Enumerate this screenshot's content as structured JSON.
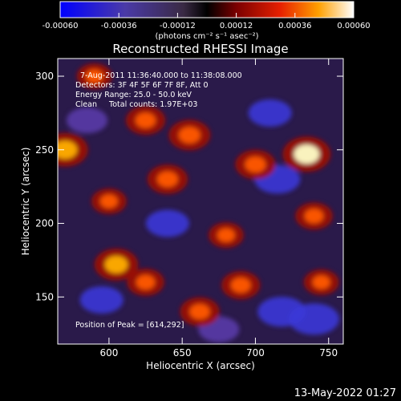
{
  "chart_data": {
    "type": "heatmap",
    "title": "Reconstructed RHESSI Image",
    "xlabel": "Heliocentric X (arcsec)",
    "ylabel": "Heliocentric Y (arcsec)",
    "xlim": [
      565,
      760
    ],
    "ylim": [
      118,
      312
    ],
    "x_ticks": [
      {
        "value": 600,
        "label": "600"
      },
      {
        "value": 650,
        "label": "650"
      },
      {
        "value": 700,
        "label": "700"
      },
      {
        "value": 750,
        "label": "750"
      }
    ],
    "y_ticks": [
      {
        "value": 150,
        "label": "150"
      },
      {
        "value": 200,
        "label": "200"
      },
      {
        "value": 250,
        "label": "250"
      },
      {
        "value": 300,
        "label": "300"
      }
    ],
    "colorbar": {
      "range": [
        -0.0006,
        0.0006
      ],
      "tick_labels": [
        "-0.00060",
        "-0.00036",
        "-0.00012",
        "0.00012",
        "0.00036",
        "0.00060"
      ],
      "units_label": "(photons cm⁻² s⁻¹ asec⁻²)"
    },
    "info_lines": [
      "7-Aug-2011 11:36:40.000 to 11:38:08.000",
      "Detectors: 3F 4F 5F 6F 7F 8F, Att 0",
      "Energy Range: 25.0 - 50.0 keV",
      "Clean     Total counts: 1.97E+03"
    ],
    "peak_label": "Position of Peak = [614,292]",
    "peak": {
      "x": 614,
      "y": 292
    },
    "hotspots": [
      {
        "x": 570,
        "y": 250,
        "value": 0.00055
      },
      {
        "x": 600,
        "y": 215,
        "value": 0.0003
      },
      {
        "x": 625,
        "y": 270,
        "value": 0.0004
      },
      {
        "x": 640,
        "y": 230,
        "value": 0.00042
      },
      {
        "x": 655,
        "y": 260,
        "value": 0.00045
      },
      {
        "x": 605,
        "y": 172,
        "value": 0.0005
      },
      {
        "x": 625,
        "y": 160,
        "value": 0.00035
      },
      {
        "x": 680,
        "y": 192,
        "value": 0.0003
      },
      {
        "x": 690,
        "y": 158,
        "value": 0.00038
      },
      {
        "x": 700,
        "y": 240,
        "value": 0.00042
      },
      {
        "x": 735,
        "y": 247,
        "value": 0.0006
      },
      {
        "x": 740,
        "y": 205,
        "value": 0.00035
      },
      {
        "x": 662,
        "y": 140,
        "value": 0.0004
      },
      {
        "x": 590,
        "y": 300,
        "value": 0.0003
      },
      {
        "x": 745,
        "y": 160,
        "value": 0.0003
      }
    ],
    "coldspots": [
      {
        "x": 715,
        "y": 230,
        "value": -0.00035
      },
      {
        "x": 718,
        "y": 140,
        "value": -0.0004
      },
      {
        "x": 740,
        "y": 135,
        "value": -0.00045
      },
      {
        "x": 595,
        "y": 148,
        "value": -0.0003
      },
      {
        "x": 640,
        "y": 200,
        "value": -0.0003
      },
      {
        "x": 675,
        "y": 128,
        "value": -0.00025
      },
      {
        "x": 585,
        "y": 270,
        "value": -0.00025
      },
      {
        "x": 710,
        "y": 275,
        "value": -0.0003
      }
    ]
  },
  "footer": {
    "timestamp": "13-May-2022 01:27"
  }
}
